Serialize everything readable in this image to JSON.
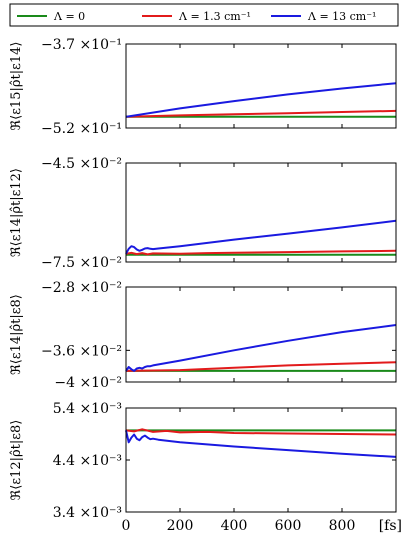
{
  "legend": {
    "placement": "top",
    "entries": [
      {
        "label": "Λ = 0",
        "color": "#1a8a1a"
      },
      {
        "label": "Λ = 1.3 cm⁻¹",
        "color": "#e21b1b"
      },
      {
        "label": "Λ = 13 cm⁻¹",
        "color": "#1a1ae0"
      }
    ]
  },
  "chart_data": [
    {
      "type": "line",
      "ylabel": "ℜ⟨ε15|ρ̂t|ε14⟩",
      "yticks": [
        {
          "value": -0.37,
          "label": "−3.7 ×10⁻¹"
        },
        {
          "value": -0.52,
          "label": "−5.2 ×10⁻¹"
        }
      ],
      "ylim": [
        -0.52,
        -0.37
      ],
      "xlim": [
        0,
        1000
      ],
      "series": [
        {
          "name": "Λ = 0",
          "color": "#1a8a1a",
          "x": [
            0,
            1000
          ],
          "y": [
            -0.5,
            -0.5
          ]
        },
        {
          "name": "Λ = 1.3 cm⁻¹",
          "color": "#e21b1b",
          "x": [
            0,
            200,
            400,
            600,
            800,
            1000
          ],
          "y": [
            -0.5,
            -0.4975,
            -0.4955,
            -0.4935,
            -0.4915,
            -0.4895
          ]
        },
        {
          "name": "Λ = 13 cm⁻¹",
          "color": "#1a1ae0",
          "x": [
            0,
            200,
            400,
            600,
            800,
            1000
          ],
          "y": [
            -0.5,
            -0.485,
            -0.472,
            -0.46,
            -0.4495,
            -0.44
          ]
        }
      ]
    },
    {
      "type": "line",
      "ylabel": "ℜ⟨ε14|ρ̂t|ε12⟩",
      "yticks": [
        {
          "value": -0.045,
          "label": "−4.5 ×10⁻²"
        },
        {
          "value": -0.075,
          "label": "−7.5 ×10⁻²"
        }
      ],
      "ylim": [
        -0.075,
        -0.045
      ],
      "xlim": [
        0,
        1000
      ],
      "series": [
        {
          "name": "Λ = 0",
          "color": "#1a8a1a",
          "x": [
            0,
            1000
          ],
          "y": [
            -0.0728,
            -0.0728
          ]
        },
        {
          "name": "Λ = 1.3 cm⁻¹",
          "color": "#e21b1b",
          "x": [
            0,
            20,
            40,
            60,
            80,
            100,
            200,
            300,
            400,
            600,
            800,
            1000
          ],
          "y": [
            -0.0725,
            -0.0722,
            -0.0726,
            -0.0723,
            -0.0727,
            -0.0724,
            -0.0725,
            -0.0723,
            -0.0722,
            -0.072,
            -0.0718,
            -0.0716
          ]
        },
        {
          "name": "Λ = 13 cm⁻¹",
          "color": "#1a1ae0",
          "x": [
            0,
            10,
            20,
            30,
            40,
            50,
            60,
            70,
            80,
            90,
            100,
            120,
            200,
            400,
            600,
            800,
            1000
          ],
          "y": [
            -0.0725,
            -0.071,
            -0.0702,
            -0.0705,
            -0.0712,
            -0.0716,
            -0.0713,
            -0.0709,
            -0.0708,
            -0.071,
            -0.0711,
            -0.0709,
            -0.0702,
            -0.0682,
            -0.0664,
            -0.0645,
            -0.0625
          ]
        }
      ]
    },
    {
      "type": "line",
      "ylabel": "ℜ⟨ε14|ρ̂t|ε8⟩",
      "yticks": [
        {
          "value": -0.028,
          "label": "−2.8 ×10⁻²"
        },
        {
          "value": -0.036,
          "label": "−3.6 ×10⁻²"
        },
        {
          "value": -0.04,
          "label": "−4 ×10⁻²"
        }
      ],
      "ylim": [
        -0.04,
        -0.028
      ],
      "xlim": [
        0,
        1000
      ],
      "series": [
        {
          "name": "Λ = 0",
          "color": "#1a8a1a",
          "x": [
            0,
            1000
          ],
          "y": [
            -0.0386,
            -0.0386
          ]
        },
        {
          "name": "Λ = 1.3 cm⁻¹",
          "color": "#e21b1b",
          "x": [
            0,
            200,
            400,
            600,
            800,
            1000
          ],
          "y": [
            -0.0386,
            -0.0385,
            -0.0382,
            -0.0379,
            -0.0377,
            -0.0375
          ]
        },
        {
          "name": "Λ = 13 cm⁻¹",
          "color": "#1a1ae0",
          "x": [
            0,
            10,
            20,
            30,
            40,
            50,
            60,
            70,
            80,
            90,
            100,
            200,
            400,
            600,
            800,
            1000
          ],
          "y": [
            -0.0386,
            -0.0381,
            -0.0384,
            -0.0386,
            -0.0383,
            -0.0382,
            -0.0383,
            -0.0381,
            -0.038,
            -0.038,
            -0.0379,
            -0.0373,
            -0.036,
            -0.0348,
            -0.0337,
            -0.0328
          ]
        }
      ]
    },
    {
      "type": "line",
      "ylabel": "ℜ⟨ε12|ρ̂t|ε8⟩",
      "yticks": [
        {
          "value": 0.0054,
          "label": "5.4 ×10⁻³"
        },
        {
          "value": 0.0044,
          "label": "4.4 ×10⁻³"
        },
        {
          "value": 0.0034,
          "label": "3.4 ×10⁻³"
        }
      ],
      "ylim": [
        0.0034,
        0.0054
      ],
      "xlim": [
        0,
        1000
      ],
      "xticks": [
        0,
        200,
        400,
        600,
        800
      ],
      "xunit": "[fs]",
      "series": [
        {
          "name": "Λ = 0",
          "color": "#1a8a1a",
          "x": [
            0,
            1000
          ],
          "y": [
            0.00497,
            0.00497
          ]
        },
        {
          "name": "Λ = 1.3 cm⁻¹",
          "color": "#e21b1b",
          "x": [
            0,
            30,
            60,
            100,
            150,
            200,
            300,
            400,
            600,
            800,
            1000
          ],
          "y": [
            0.00497,
            0.00495,
            0.00499,
            0.00494,
            0.00496,
            0.00493,
            0.00494,
            0.00492,
            0.00491,
            0.0049,
            0.00489
          ]
        },
        {
          "name": "Λ = 13 cm⁻¹",
          "color": "#1a1ae0",
          "x": [
            0,
            10,
            20,
            30,
            40,
            50,
            60,
            70,
            80,
            90,
            100,
            120,
            200,
            400,
            600,
            800,
            1000
          ],
          "y": [
            0.00497,
            0.00474,
            0.00483,
            0.00489,
            0.00481,
            0.00478,
            0.00484,
            0.00487,
            0.00483,
            0.0048,
            0.00481,
            0.00479,
            0.00474,
            0.00466,
            0.00459,
            0.00452,
            0.00446
          ]
        }
      ]
    }
  ]
}
